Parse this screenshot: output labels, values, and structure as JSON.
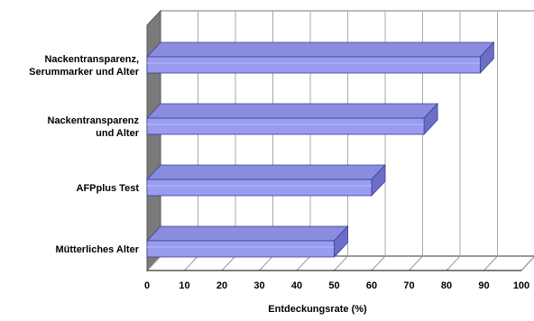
{
  "chart_data": {
    "type": "bar",
    "orientation": "horizontal",
    "three_d": true,
    "categories": [
      [
        "Nackentransparenz,",
        "Serummarker und Alter"
      ],
      [
        "Nackentransparenz",
        "und Alter"
      ],
      [
        "AFPplus Test"
      ],
      [
        "Mütterliches Alter"
      ]
    ],
    "values": [
      89,
      74,
      60,
      50
    ],
    "xlabel": "Entdeckungsrate (%)",
    "xlim": [
      0,
      100
    ],
    "xticks": [
      "0",
      "10",
      "20",
      "30",
      "40",
      "50",
      "60",
      "70",
      "80",
      "90",
      "100"
    ],
    "grid": true,
    "legend": "none",
    "colors": {
      "bar_front": "#9a9cf0",
      "bar_top": "#8a8ce0",
      "bar_side": "#6c6ec8",
      "bar_edge": "#3a3c90",
      "wall": "#ffffff",
      "floor": "#ffffff",
      "left_wall_edge": "#555555",
      "grid": "#a8a8a8"
    }
  }
}
